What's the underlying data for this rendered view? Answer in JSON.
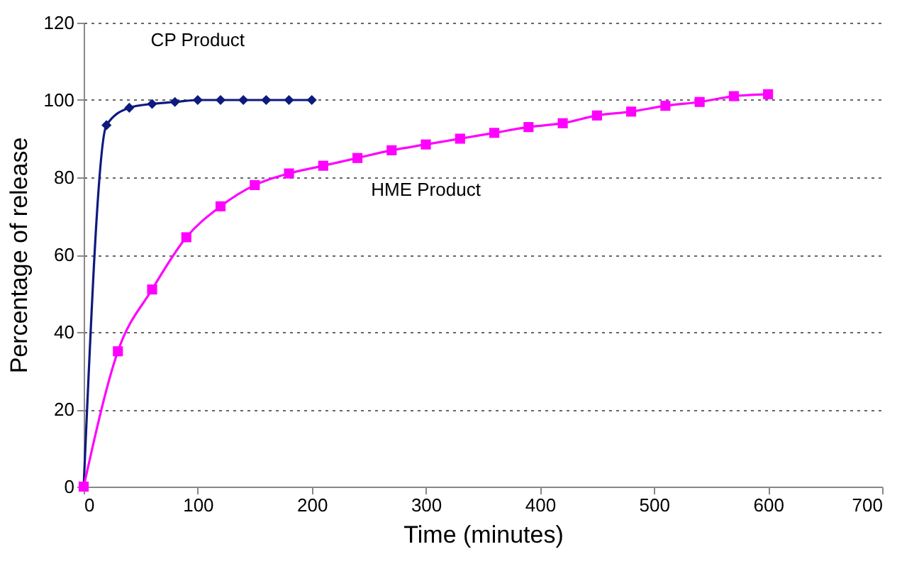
{
  "chart_data": {
    "type": "line",
    "xlabel": "Time (minutes)",
    "ylabel": "Percentage of release",
    "xlim": [
      0,
      700
    ],
    "xticks": [
      0,
      100,
      200,
      300,
      400,
      500,
      600,
      700
    ],
    "ylim": [
      0,
      120
    ],
    "yticks": [
      0,
      20,
      40,
      60,
      80,
      100,
      120
    ],
    "grid": "y",
    "series": [
      {
        "name": "CP Product",
        "color": "#0d1a7f",
        "marker": "diamond",
        "x": [
          0,
          20,
          40,
          60,
          80,
          100,
          120,
          140,
          160,
          180,
          200
        ],
        "values": [
          0,
          93.5,
          98,
          99,
          99.5,
          100,
          100,
          100,
          100,
          100,
          100
        ]
      },
      {
        "name": "HME Product",
        "color": "#ff00ff",
        "marker": "square",
        "x": [
          0,
          30,
          60,
          90,
          120,
          150,
          180,
          210,
          240,
          270,
          300,
          330,
          360,
          390,
          420,
          450,
          480,
          510,
          540,
          570,
          600
        ],
        "values": [
          0,
          35,
          51,
          64.5,
          72.5,
          78,
          81,
          83,
          85,
          87,
          88.5,
          90,
          91.5,
          93,
          94,
          96,
          97,
          98.5,
          99.5,
          101,
          101.5
        ]
      }
    ]
  }
}
